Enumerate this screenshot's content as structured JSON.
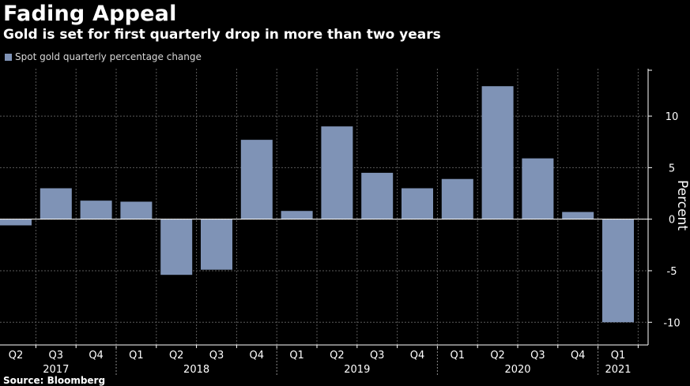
{
  "chart_data": {
    "type": "bar",
    "title": "Fading Appeal",
    "subtitle": "Gold is set for first quarterly drop in more than two years",
    "legend": [
      "Spot gold quarterly percentage change"
    ],
    "legend_placement": "top-left",
    "series": [
      {
        "name": "Spot gold quarterly percentage change",
        "color": "#7f93b6",
        "values": [
          -0.6,
          3.0,
          1.8,
          1.7,
          -5.4,
          -4.9,
          7.7,
          0.8,
          9.0,
          4.5,
          3.0,
          3.9,
          12.9,
          5.9,
          0.7,
          -10.0
        ]
      }
    ],
    "categories": [
      "Q2",
      "Q3",
      "Q4",
      "Q1",
      "Q2",
      "Q3",
      "Q4",
      "Q1",
      "Q2",
      "Q3",
      "Q4",
      "Q1",
      "Q2",
      "Q3",
      "Q4",
      "Q1"
    ],
    "year_labels": [
      {
        "label": "2017",
        "start": 0,
        "end": 2
      },
      {
        "label": "2018",
        "start": 3,
        "end": 6
      },
      {
        "label": "2019",
        "start": 7,
        "end": 10
      },
      {
        "label": "2020",
        "start": 11,
        "end": 14
      },
      {
        "label": "2021",
        "start": 15,
        "end": 15
      }
    ],
    "ylabel": "Percent",
    "yticks": [
      -10,
      -5,
      0,
      5,
      10
    ],
    "ylim": [
      -12.2,
      14.6
    ],
    "y_axis_position": "right",
    "grid": true,
    "source": "Source: Bloomberg"
  }
}
